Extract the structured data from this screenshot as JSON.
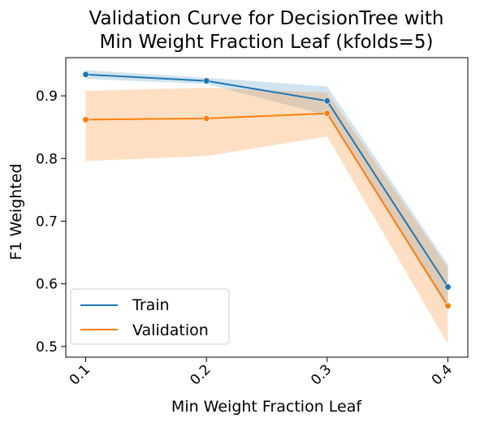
{
  "chart_data": {
    "type": "line",
    "title_lines": [
      "Validation Curve for DecisionTree with",
      "Min Weight Fraction Leaf (kfolds=5)"
    ],
    "xlabel": "Min Weight Fraction Leaf",
    "ylabel": "F1 Weighted",
    "x": [
      0.1,
      0.2,
      0.3,
      0.4
    ],
    "x_tick_labels": [
      "0.1",
      "0.2",
      "0.3",
      "0.4"
    ],
    "y_ticks": [
      0.5,
      0.6,
      0.7,
      0.8,
      0.9
    ],
    "y_tick_labels": [
      "0.5",
      "0.6",
      "0.7",
      "0.8",
      "0.9"
    ],
    "xlim": [
      0.0835,
      0.4165
    ],
    "ylim": [
      0.483,
      0.961
    ],
    "grid": false,
    "legend_position": "lower-left",
    "series": [
      {
        "name": "Train",
        "color": "#1f77b4",
        "values": [
          0.934,
          0.924,
          0.892,
          0.595
        ],
        "lower": [
          0.927,
          0.919,
          0.869,
          0.559
        ],
        "upper": [
          0.941,
          0.929,
          0.915,
          0.631
        ]
      },
      {
        "name": "Validation",
        "color": "#ff7f0e",
        "values": [
          0.862,
          0.864,
          0.872,
          0.565
        ],
        "lower": [
          0.796,
          0.804,
          0.835,
          0.504
        ],
        "upper": [
          0.908,
          0.913,
          0.905,
          0.626
        ]
      }
    ]
  }
}
